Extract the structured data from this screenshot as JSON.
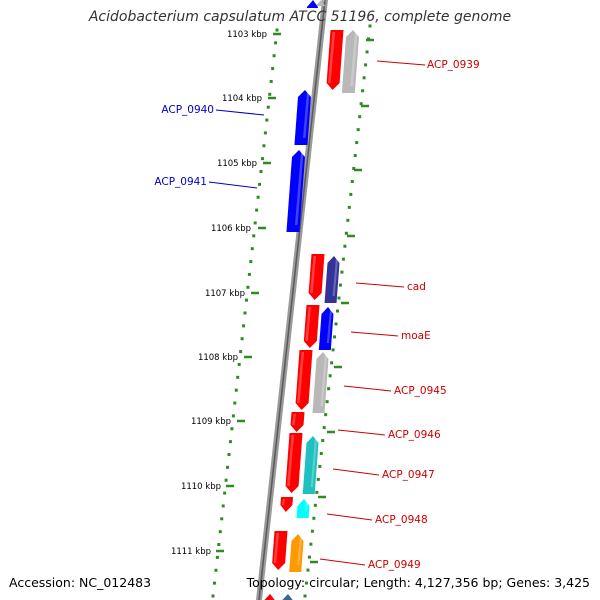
{
  "title": "Acidobacterium capsulatum ATCC 51196, complete genome",
  "accession_text": "Accession: NC_012483",
  "summary_text": "Topology: circular; Length: 4,127,356 bp; Genes: 3,425",
  "colors": {
    "backbone": "#808080",
    "forward_label": "#0000cc",
    "reverse_label": "#cc0000",
    "scale": "#2e8b22",
    "gene_red": "#ff0000",
    "gene_blue": "#0000ff",
    "gene_gray": "#b8b8b8",
    "gene_teal": "#20c0c0",
    "gene_cyan": "#00ffff",
    "gene_orange": "#ff9900",
    "gene_navy": "#333399"
  },
  "ticks": [
    {
      "label": "1103 kbp"
    },
    {
      "label": "1104 kbp"
    },
    {
      "label": "1105 kbp"
    },
    {
      "label": "1106 kbp"
    },
    {
      "label": "1107 kbp"
    },
    {
      "label": "1108 kbp"
    },
    {
      "label": "1109 kbp"
    },
    {
      "label": "1110 kbp"
    },
    {
      "label": "1111 kbp"
    }
  ],
  "gene_labels": [
    {
      "text": "ACP_0939",
      "strand": "reverse"
    },
    {
      "text": "ACP_0940",
      "strand": "forward"
    },
    {
      "text": "ACP_0941",
      "strand": "forward"
    },
    {
      "text": "cad",
      "strand": "reverse"
    },
    {
      "text": "moaE",
      "strand": "reverse"
    },
    {
      "text": "ACP_0945",
      "strand": "reverse"
    },
    {
      "text": "ACP_0946",
      "strand": "reverse"
    },
    {
      "text": "ACP_0947",
      "strand": "reverse"
    },
    {
      "text": "ACP_0948",
      "strand": "reverse"
    },
    {
      "text": "ACP_0949",
      "strand": "reverse"
    }
  ]
}
